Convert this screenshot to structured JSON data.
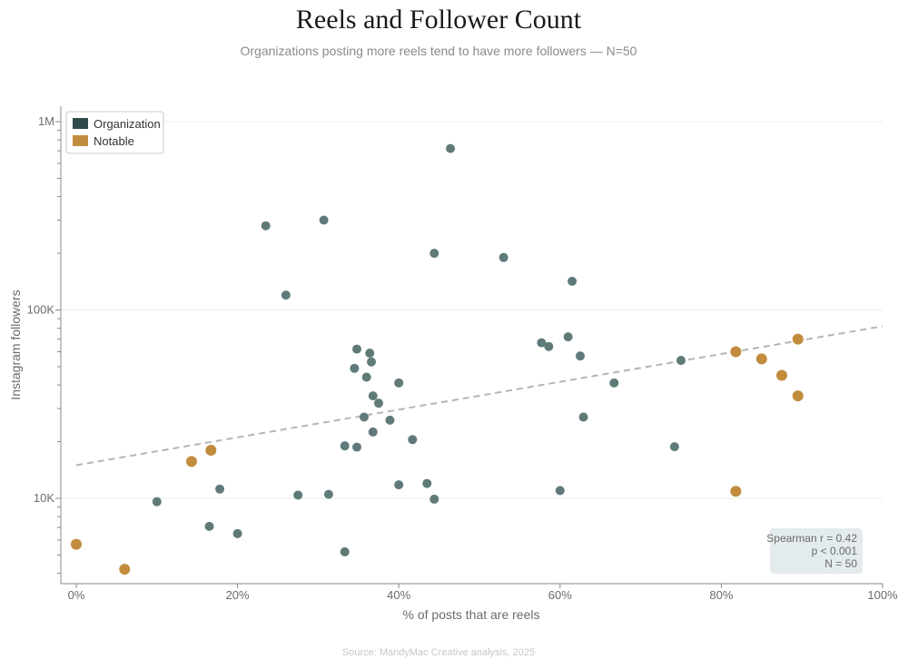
{
  "chart_data": {
    "type": "scatter",
    "title": "Reels and Follower Count",
    "subtitle": "Organizations posting more reels tend to have more followers — N=50",
    "xlabel": "% of posts that are reels",
    "ylabel": "Instagram followers",
    "source": "Source: MandyMac Creative analysis, 2025",
    "xlim": [
      0,
      100
    ],
    "ylim": [
      4000,
      1000000
    ],
    "yscale": "log",
    "x_ticks": [
      {
        "value": 0,
        "label": "0%"
      },
      {
        "value": 20,
        "label": "20%"
      },
      {
        "value": 40,
        "label": "40%"
      },
      {
        "value": 60,
        "label": "60%"
      },
      {
        "value": 80,
        "label": "80%"
      },
      {
        "value": 100,
        "label": "100%"
      }
    ],
    "y_ticks": [
      {
        "value": 10000,
        "label": "10K"
      },
      {
        "value": 100000,
        "label": "100K"
      },
      {
        "value": 1000000,
        "label": "1M"
      }
    ],
    "grid": {
      "y": true,
      "x": false
    },
    "legend_position": "top-left",
    "series": [
      {
        "name": "Organization",
        "color": "#5f7a79",
        "points": [
          {
            "x": 10,
            "y": 9600
          },
          {
            "x": 16.5,
            "y": 7100
          },
          {
            "x": 17.8,
            "y": 11200
          },
          {
            "x": 20,
            "y": 6500
          },
          {
            "x": 23.5,
            "y": 280000
          },
          {
            "x": 26,
            "y": 120000
          },
          {
            "x": 27.5,
            "y": 10400
          },
          {
            "x": 30.7,
            "y": 300000
          },
          {
            "x": 31.3,
            "y": 10500
          },
          {
            "x": 33.3,
            "y": 19000
          },
          {
            "x": 33.3,
            "y": 5200
          },
          {
            "x": 34.5,
            "y": 49000
          },
          {
            "x": 34.8,
            "y": 62000
          },
          {
            "x": 34.8,
            "y": 18700
          },
          {
            "x": 35.7,
            "y": 27000
          },
          {
            "x": 36,
            "y": 44000
          },
          {
            "x": 36.4,
            "y": 59000
          },
          {
            "x": 36.6,
            "y": 53000
          },
          {
            "x": 36.8,
            "y": 22500
          },
          {
            "x": 36.8,
            "y": 35000
          },
          {
            "x": 37.5,
            "y": 32000
          },
          {
            "x": 38.9,
            "y": 26000
          },
          {
            "x": 40,
            "y": 41000
          },
          {
            "x": 40,
            "y": 11800
          },
          {
            "x": 41.7,
            "y": 20500
          },
          {
            "x": 43.5,
            "y": 12000
          },
          {
            "x": 44.4,
            "y": 200000
          },
          {
            "x": 44.4,
            "y": 9900
          },
          {
            "x": 46.4,
            "y": 720000
          },
          {
            "x": 53,
            "y": 190000
          },
          {
            "x": 57.7,
            "y": 67000
          },
          {
            "x": 58.6,
            "y": 64000
          },
          {
            "x": 60,
            "y": 11000
          },
          {
            "x": 61,
            "y": 72000
          },
          {
            "x": 61.5,
            "y": 142000
          },
          {
            "x": 62.5,
            "y": 57000
          },
          {
            "x": 62.9,
            "y": 27000
          },
          {
            "x": 66.7,
            "y": 41000
          },
          {
            "x": 74.2,
            "y": 18800
          },
          {
            "x": 75,
            "y": 54000
          }
        ]
      },
      {
        "name": "Notable",
        "color": "#c18c3e",
        "points": [
          {
            "x": 0,
            "y": 5700
          },
          {
            "x": 6,
            "y": 4200
          },
          {
            "x": 14.3,
            "y": 15700
          },
          {
            "x": 16.7,
            "y": 18000
          },
          {
            "x": 81.8,
            "y": 60000
          },
          {
            "x": 81.8,
            "y": 10900
          },
          {
            "x": 85,
            "y": 55000
          },
          {
            "x": 87.5,
            "y": 45000
          },
          {
            "x": 89.5,
            "y": 70000
          },
          {
            "x": 89.5,
            "y": 35000
          }
        ]
      }
    ],
    "trendline": {
      "style": "dashed",
      "color": "#b5b5b5",
      "x": [
        0,
        100
      ],
      "y": [
        15000,
        82000
      ]
    },
    "stats": {
      "lines": [
        "Spearman r = 0.42",
        "p < 0.001",
        "N = 50"
      ],
      "position": "bottom-right"
    }
  }
}
